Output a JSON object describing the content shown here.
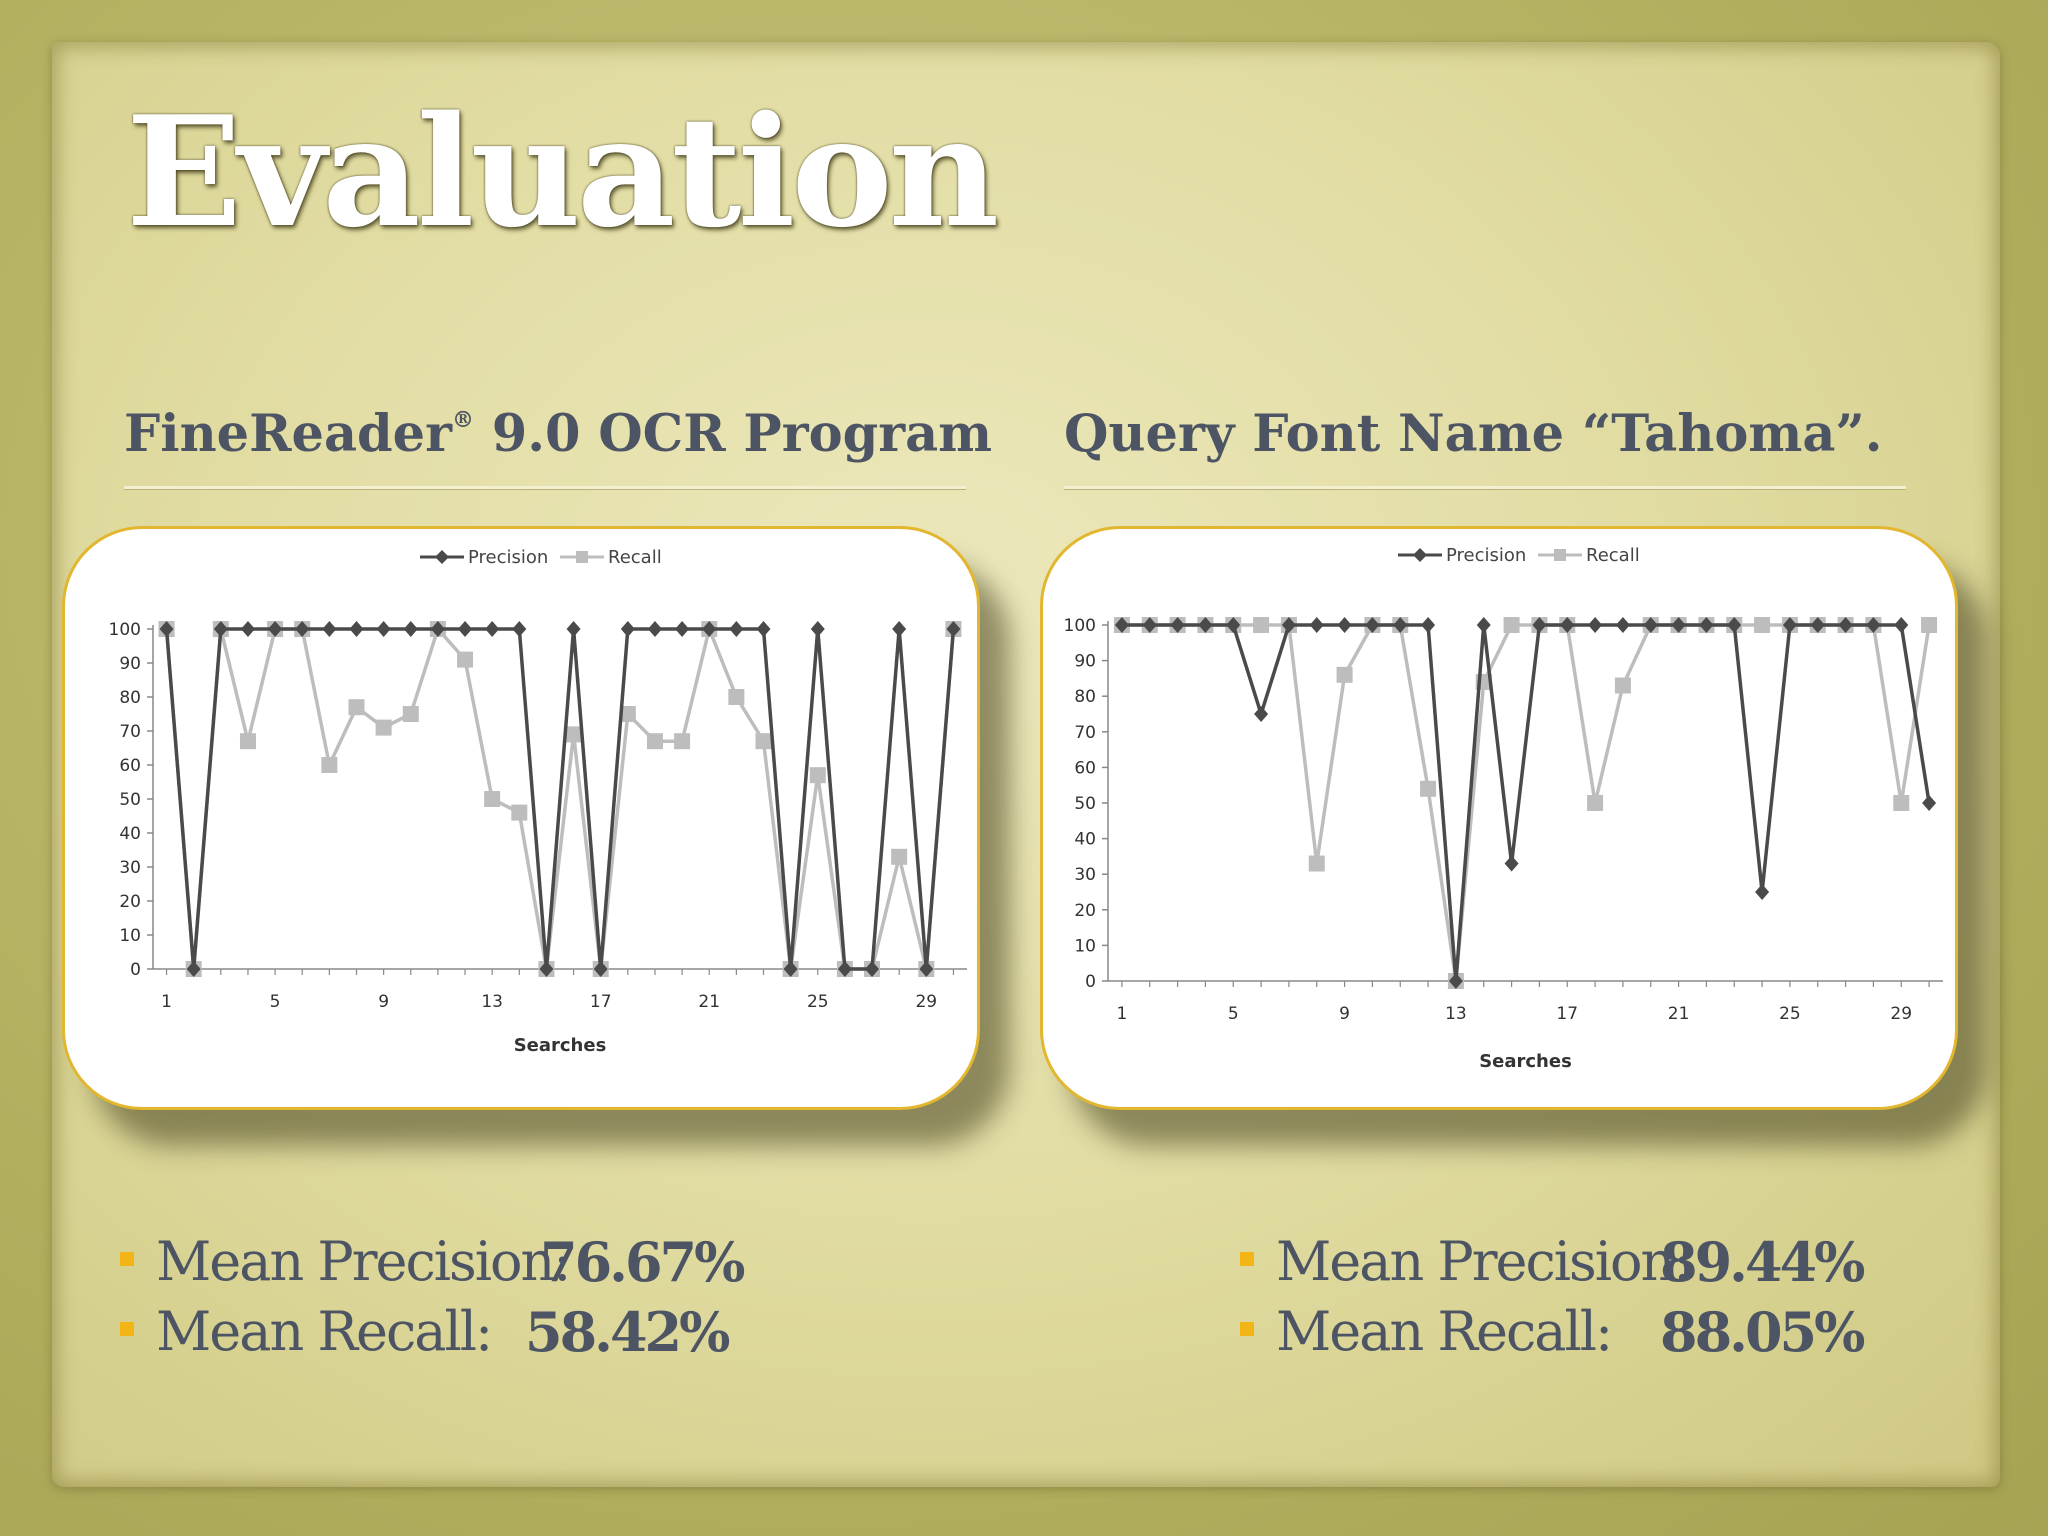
{
  "slide": {
    "title": "Evaluation",
    "left": {
      "heading": "FineReader",
      "heading_mark": "®",
      "heading_rest": " 9.0 OCR Program",
      "stats": [
        {
          "label": "Mean Precision:",
          "value": "76.67%"
        },
        {
          "label": "Mean Recall:",
          "value": "58.42%"
        }
      ]
    },
    "right": {
      "heading": "Query Font Name “Tahoma”.",
      "stats": [
        {
          "label": "Mean Precision:",
          "value": "89.44%"
        },
        {
          "label": "Mean Recall:",
          "value": "88.05%"
        }
      ]
    },
    "colors": {
      "bullet": "#f2b515",
      "precision": "#4a4a4a",
      "recall": "#bdbdbd"
    }
  },
  "chart_data": [
    {
      "type": "line",
      "xlabel": "Searches",
      "ylabel": "",
      "ylim": [
        0,
        100
      ],
      "yticks": [
        0,
        10,
        20,
        30,
        40,
        50,
        60,
        70,
        80,
        90,
        100
      ],
      "xticks": [
        1,
        5,
        9,
        13,
        17,
        21,
        25,
        29
      ],
      "legend": "top-center",
      "x": [
        1,
        2,
        3,
        4,
        5,
        6,
        7,
        8,
        9,
        10,
        11,
        12,
        13,
        14,
        15,
        16,
        17,
        18,
        19,
        20,
        21,
        22,
        23,
        24,
        25,
        26,
        27,
        28,
        29,
        30
      ],
      "series": [
        {
          "name": "Precision",
          "marker": "diamond",
          "values": [
            100,
            0,
            100,
            100,
            100,
            100,
            100,
            100,
            100,
            100,
            100,
            100,
            100,
            100,
            0,
            100,
            0,
            100,
            100,
            100,
            100,
            100,
            100,
            0,
            100,
            0,
            0,
            100,
            0,
            100
          ]
        },
        {
          "name": "Recall",
          "marker": "square",
          "values": [
            100,
            0,
            100,
            67,
            100,
            100,
            60,
            77,
            71,
            75,
            100,
            91,
            50,
            46,
            0,
            69,
            0,
            75,
            67,
            67,
            100,
            80,
            67,
            0,
            57,
            0,
            0,
            33,
            0,
            100
          ]
        }
      ]
    },
    {
      "type": "line",
      "xlabel": "Searches",
      "ylabel": "",
      "ylim": [
        0,
        100
      ],
      "yticks": [
        0,
        10,
        20,
        30,
        40,
        50,
        60,
        70,
        80,
        90,
        100
      ],
      "xticks": [
        1,
        5,
        9,
        13,
        17,
        21,
        25,
        29
      ],
      "legend": "top-center",
      "x": [
        1,
        2,
        3,
        4,
        5,
        6,
        7,
        8,
        9,
        10,
        11,
        12,
        13,
        14,
        15,
        16,
        17,
        18,
        19,
        20,
        21,
        22,
        23,
        24,
        25,
        26,
        27,
        28,
        29,
        30
      ],
      "series": [
        {
          "name": "Precision",
          "marker": "diamond",
          "values": [
            100,
            100,
            100,
            100,
            100,
            75,
            100,
            100,
            100,
            100,
            100,
            100,
            0,
            100,
            33,
            100,
            100,
            100,
            100,
            100,
            100,
            100,
            100,
            25,
            100,
            100,
            100,
            100,
            100,
            50
          ]
        },
        {
          "name": "Recall",
          "marker": "square",
          "values": [
            100,
            100,
            100,
            100,
            100,
            100,
            100,
            33,
            86,
            100,
            100,
            54,
            0,
            84,
            100,
            100,
            100,
            50,
            83,
            100,
            100,
            100,
            100,
            100,
            100,
            100,
            100,
            100,
            50,
            100
          ]
        }
      ]
    }
  ]
}
